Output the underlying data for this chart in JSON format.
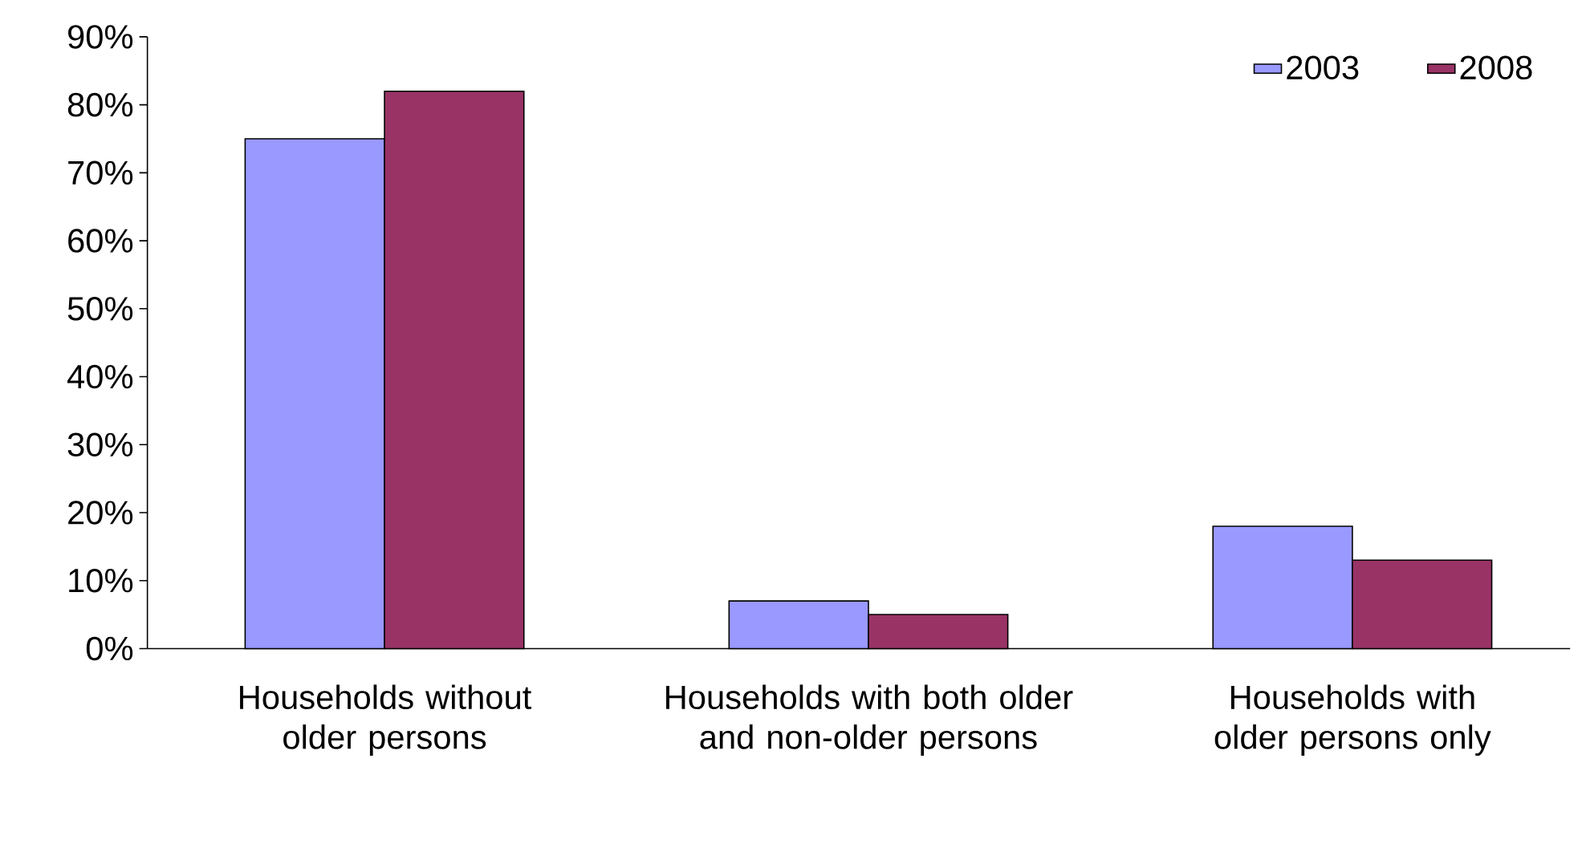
{
  "chart_data": {
    "type": "bar",
    "categories": [
      "Households without older persons",
      "Households with both older and non-older persons",
      "Households with older persons only"
    ],
    "series": [
      {
        "name": "2003",
        "color": "#9999ff",
        "values": [
          75,
          7,
          18
        ]
      },
      {
        "name": "2008",
        "color": "#993366",
        "values": [
          82,
          5,
          13
        ]
      }
    ],
    "ylim": [
      0,
      90
    ],
    "yticks": [
      {
        "value": 0,
        "label": "0%"
      },
      {
        "value": 10,
        "label": "10%"
      },
      {
        "value": 20,
        "label": "20%"
      },
      {
        "value": 30,
        "label": "30%"
      },
      {
        "value": 40,
        "label": "40%"
      },
      {
        "value": 50,
        "label": "50%"
      },
      {
        "value": 60,
        "label": "60%"
      },
      {
        "value": 70,
        "label": "70%"
      },
      {
        "value": 80,
        "label": "80%"
      },
      {
        "value": 90,
        "label": "90%"
      }
    ],
    "grid": false,
    "legend": "top right"
  }
}
